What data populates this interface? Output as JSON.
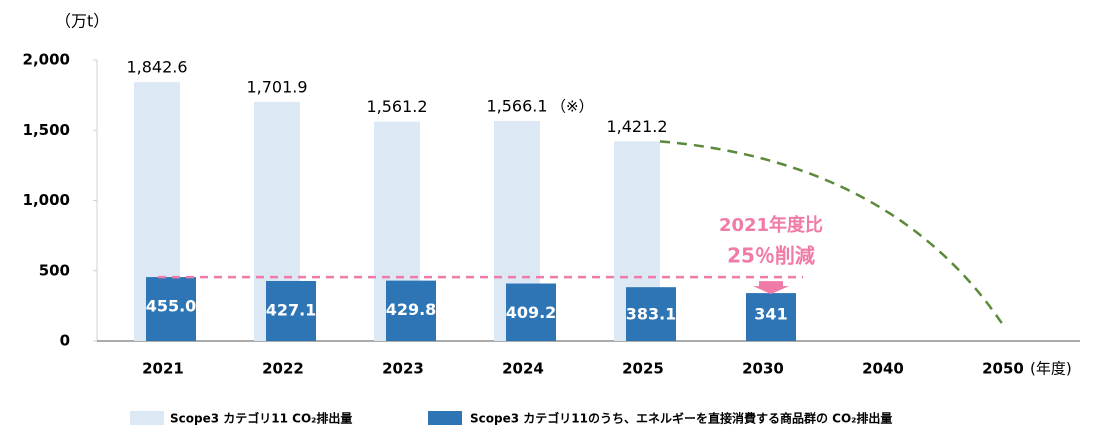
{
  "chart_data": {
    "type": "bar",
    "unit_label": "（万t）",
    "x_label": "(年度)",
    "categories": [
      "2021",
      "2022",
      "2023",
      "2024",
      "2025",
      "2030",
      "2040",
      "2050"
    ],
    "series": [
      {
        "name": "Scope3 カテゴリ11 CO₂排出量",
        "color": "#dce9f5",
        "values": [
          1842.6,
          1701.9,
          1561.2,
          1566.1,
          1421.2,
          null,
          null,
          null
        ],
        "value_labels": [
          "1,842.6",
          "1,701.9",
          "1,561.2",
          "1,566.1",
          "1,421.2",
          null,
          null,
          null
        ]
      },
      {
        "name": "Scope3 カテゴリ11のうち、エネルギーを直接消費する商品群の CO₂排出量",
        "color": "#2e75b6",
        "values": [
          455.0,
          427.1,
          429.8,
          409.2,
          383.1,
          341,
          null,
          null
        ],
        "value_labels": [
          "455.0",
          "427.1",
          "429.8",
          "409.2",
          "383.1",
          "341",
          null,
          null
        ]
      }
    ],
    "note_mark": "（※）",
    "annotations": [
      "2021年度比",
      "25％削減"
    ],
    "ylim": [
      0,
      2000
    ],
    "yticks": [
      0,
      500,
      {
        "value": 1000,
        "label": "1,000"
      },
      {
        "value": 1500,
        "label": "1,500"
      },
      {
        "value": 2000,
        "label": "2,000"
      }
    ]
  }
}
